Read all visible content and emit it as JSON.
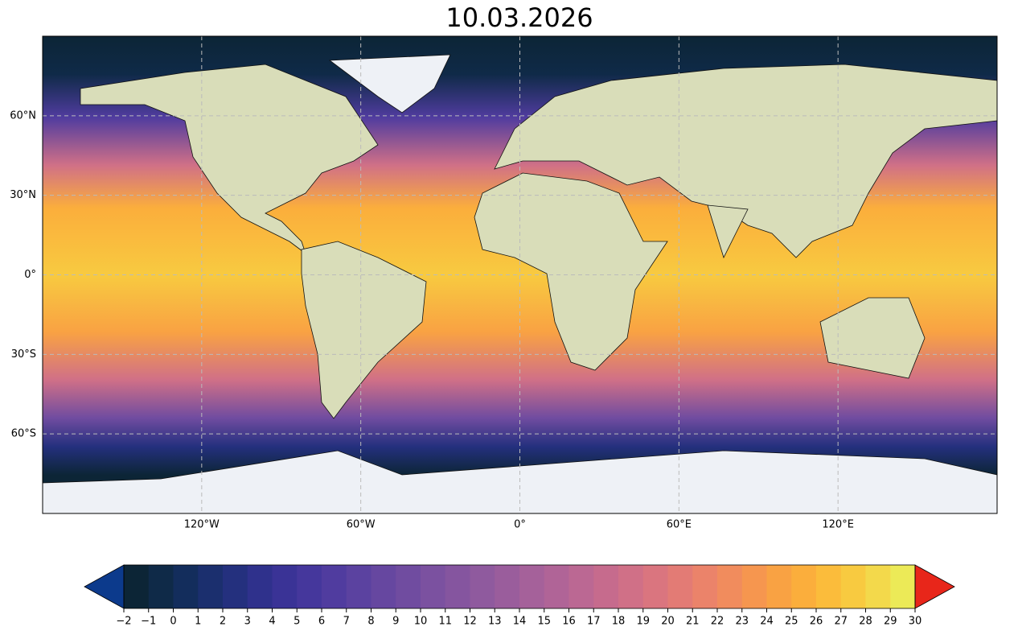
{
  "chart_data": {
    "type": "map",
    "title": "10.03.2026",
    "xlim": [
      -180,
      180
    ],
    "ylim": [
      -90,
      90
    ],
    "xticks": [
      {
        "value": -120,
        "label": "120°W"
      },
      {
        "value": -60,
        "label": "60°W"
      },
      {
        "value": 0,
        "label": "0°"
      },
      {
        "value": 60,
        "label": "60°E"
      },
      {
        "value": 120,
        "label": "120°E"
      }
    ],
    "yticks": [
      {
        "value": 60,
        "label": "60°N"
      },
      {
        "value": 30,
        "label": "30°N"
      },
      {
        "value": 0,
        "label": "0°"
      },
      {
        "value": -30,
        "label": "30°S"
      },
      {
        "value": -60,
        "label": "60°S"
      }
    ],
    "grid": true,
    "colorbar": {
      "lim": [
        -2,
        30
      ],
      "ticks": [
        {
          "value": -2,
          "label": "−2"
        },
        {
          "value": -1,
          "label": "−1"
        },
        0,
        1,
        2,
        3,
        4,
        5,
        6,
        7,
        8,
        9,
        10,
        11,
        12,
        13,
        14,
        15,
        16,
        17,
        18,
        19,
        20,
        21,
        22,
        23,
        24,
        25,
        26,
        27,
        28,
        29,
        30
      ],
      "colors": [
        "#0c2536",
        "#0f2a48",
        "#132d5c",
        "#1b2f6e",
        "#24307e",
        "#2f318c",
        "#3a3396",
        "#45379c",
        "#503c9f",
        "#5b42a0",
        "#6647a0",
        "#704ca0",
        "#7b51a0",
        "#85559f",
        "#8f5a9e",
        "#9a5d9c",
        "#a5619a",
        "#b06497",
        "#bb6893",
        "#c66b8d",
        "#d07087",
        "#da757f",
        "#e37b75",
        "#eb836a",
        "#f18c5d",
        "#f6964f",
        "#f9a243",
        "#fbae3c",
        "#fbbc3b",
        "#f8ca40",
        "#f3d94b",
        "#ecea57"
      ],
      "extend_colors": [
        "#0c3a8c",
        "#e8261a"
      ]
    }
  }
}
